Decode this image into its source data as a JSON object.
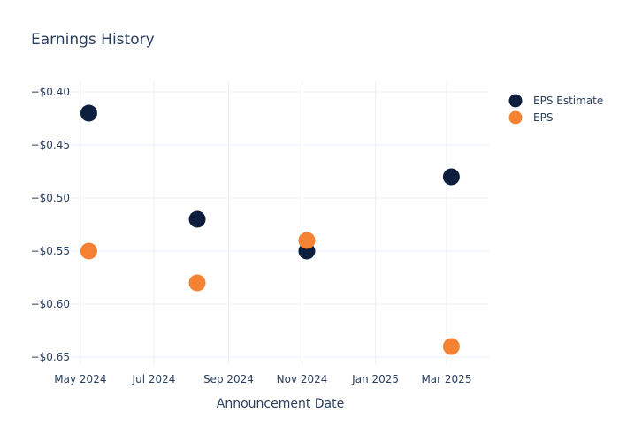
{
  "chart_data": {
    "type": "scatter",
    "title": "Earnings History",
    "xlabel": "Announcement Date",
    "ylabel": "",
    "x_ticks": [
      {
        "date": "2024-05-01",
        "label": "May 2024"
      },
      {
        "date": "2024-07-01",
        "label": "Jul 2024"
      },
      {
        "date": "2024-09-01",
        "label": "Sep 2024"
      },
      {
        "date": "2024-11-01",
        "label": "Nov 2024"
      },
      {
        "date": "2025-01-01",
        "label": "Jan 2025"
      },
      {
        "date": "2025-03-01",
        "label": "Mar 2025"
      }
    ],
    "y_ticks": [
      {
        "value": -0.4,
        "label": "−$0.40"
      },
      {
        "value": -0.45,
        "label": "−$0.45"
      },
      {
        "value": -0.5,
        "label": "−$0.50"
      },
      {
        "value": -0.55,
        "label": "−$0.55"
      },
      {
        "value": -0.6,
        "label": "−$0.60"
      },
      {
        "value": -0.65,
        "label": "−$0.65"
      }
    ],
    "xlim": [
      "2024-04-23",
      "2025-04-06"
    ],
    "ylim": [
      -0.665,
      -0.4
    ],
    "grid": true,
    "legend_position": "top-right",
    "series": [
      {
        "name": "EPS Estimate",
        "color": "#0d1f3c",
        "points": [
          {
            "x": "2024-05-08",
            "y": -0.42
          },
          {
            "x": "2024-08-06",
            "y": -0.52
          },
          {
            "x": "2024-11-05",
            "y": -0.55
          },
          {
            "x": "2025-03-05",
            "y": -0.48
          }
        ]
      },
      {
        "name": "EPS",
        "color": "#f58233",
        "points": [
          {
            "x": "2024-05-08",
            "y": -0.55
          },
          {
            "x": "2024-08-06",
            "y": -0.58
          },
          {
            "x": "2024-11-05",
            "y": -0.54
          },
          {
            "x": "2025-03-05",
            "y": -0.64
          }
        ]
      }
    ]
  }
}
